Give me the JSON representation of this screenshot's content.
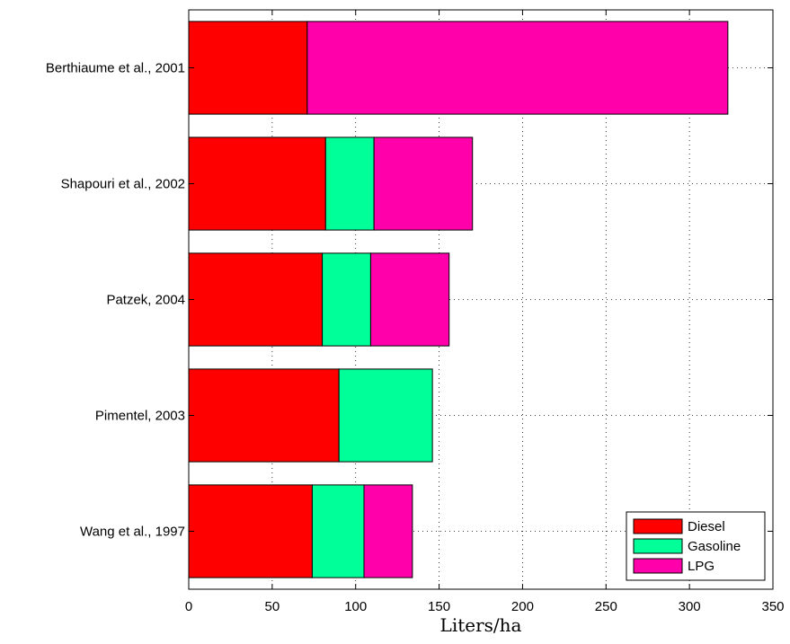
{
  "chart_data": {
    "type": "bar",
    "orientation": "horizontal",
    "stacked": true,
    "categories": [
      "Berthiaume et al., 2001",
      "Shapouri et al., 2002",
      "Patzek, 2004",
      "Pimentel, 2003",
      "Wang et al., 1997"
    ],
    "series": [
      {
        "name": "Diesel",
        "color": "#ff0000",
        "values": [
          71,
          82,
          80,
          90,
          74
        ]
      },
      {
        "name": "Gasoline",
        "color": "#00ff99",
        "values": [
          0,
          29,
          29,
          56,
          31
        ]
      },
      {
        "name": "LPG",
        "color": "#ff00aa",
        "values": [
          252,
          59,
          47,
          0,
          29
        ]
      }
    ],
    "xlabel": "Liters/ha",
    "ylabel": "",
    "title": "",
    "xlim": [
      0,
      350
    ],
    "xticks": [
      "0",
      "50",
      "100",
      "150",
      "200",
      "250",
      "300",
      "350"
    ],
    "grid": true,
    "legend": {
      "position": "bottom-right"
    }
  }
}
